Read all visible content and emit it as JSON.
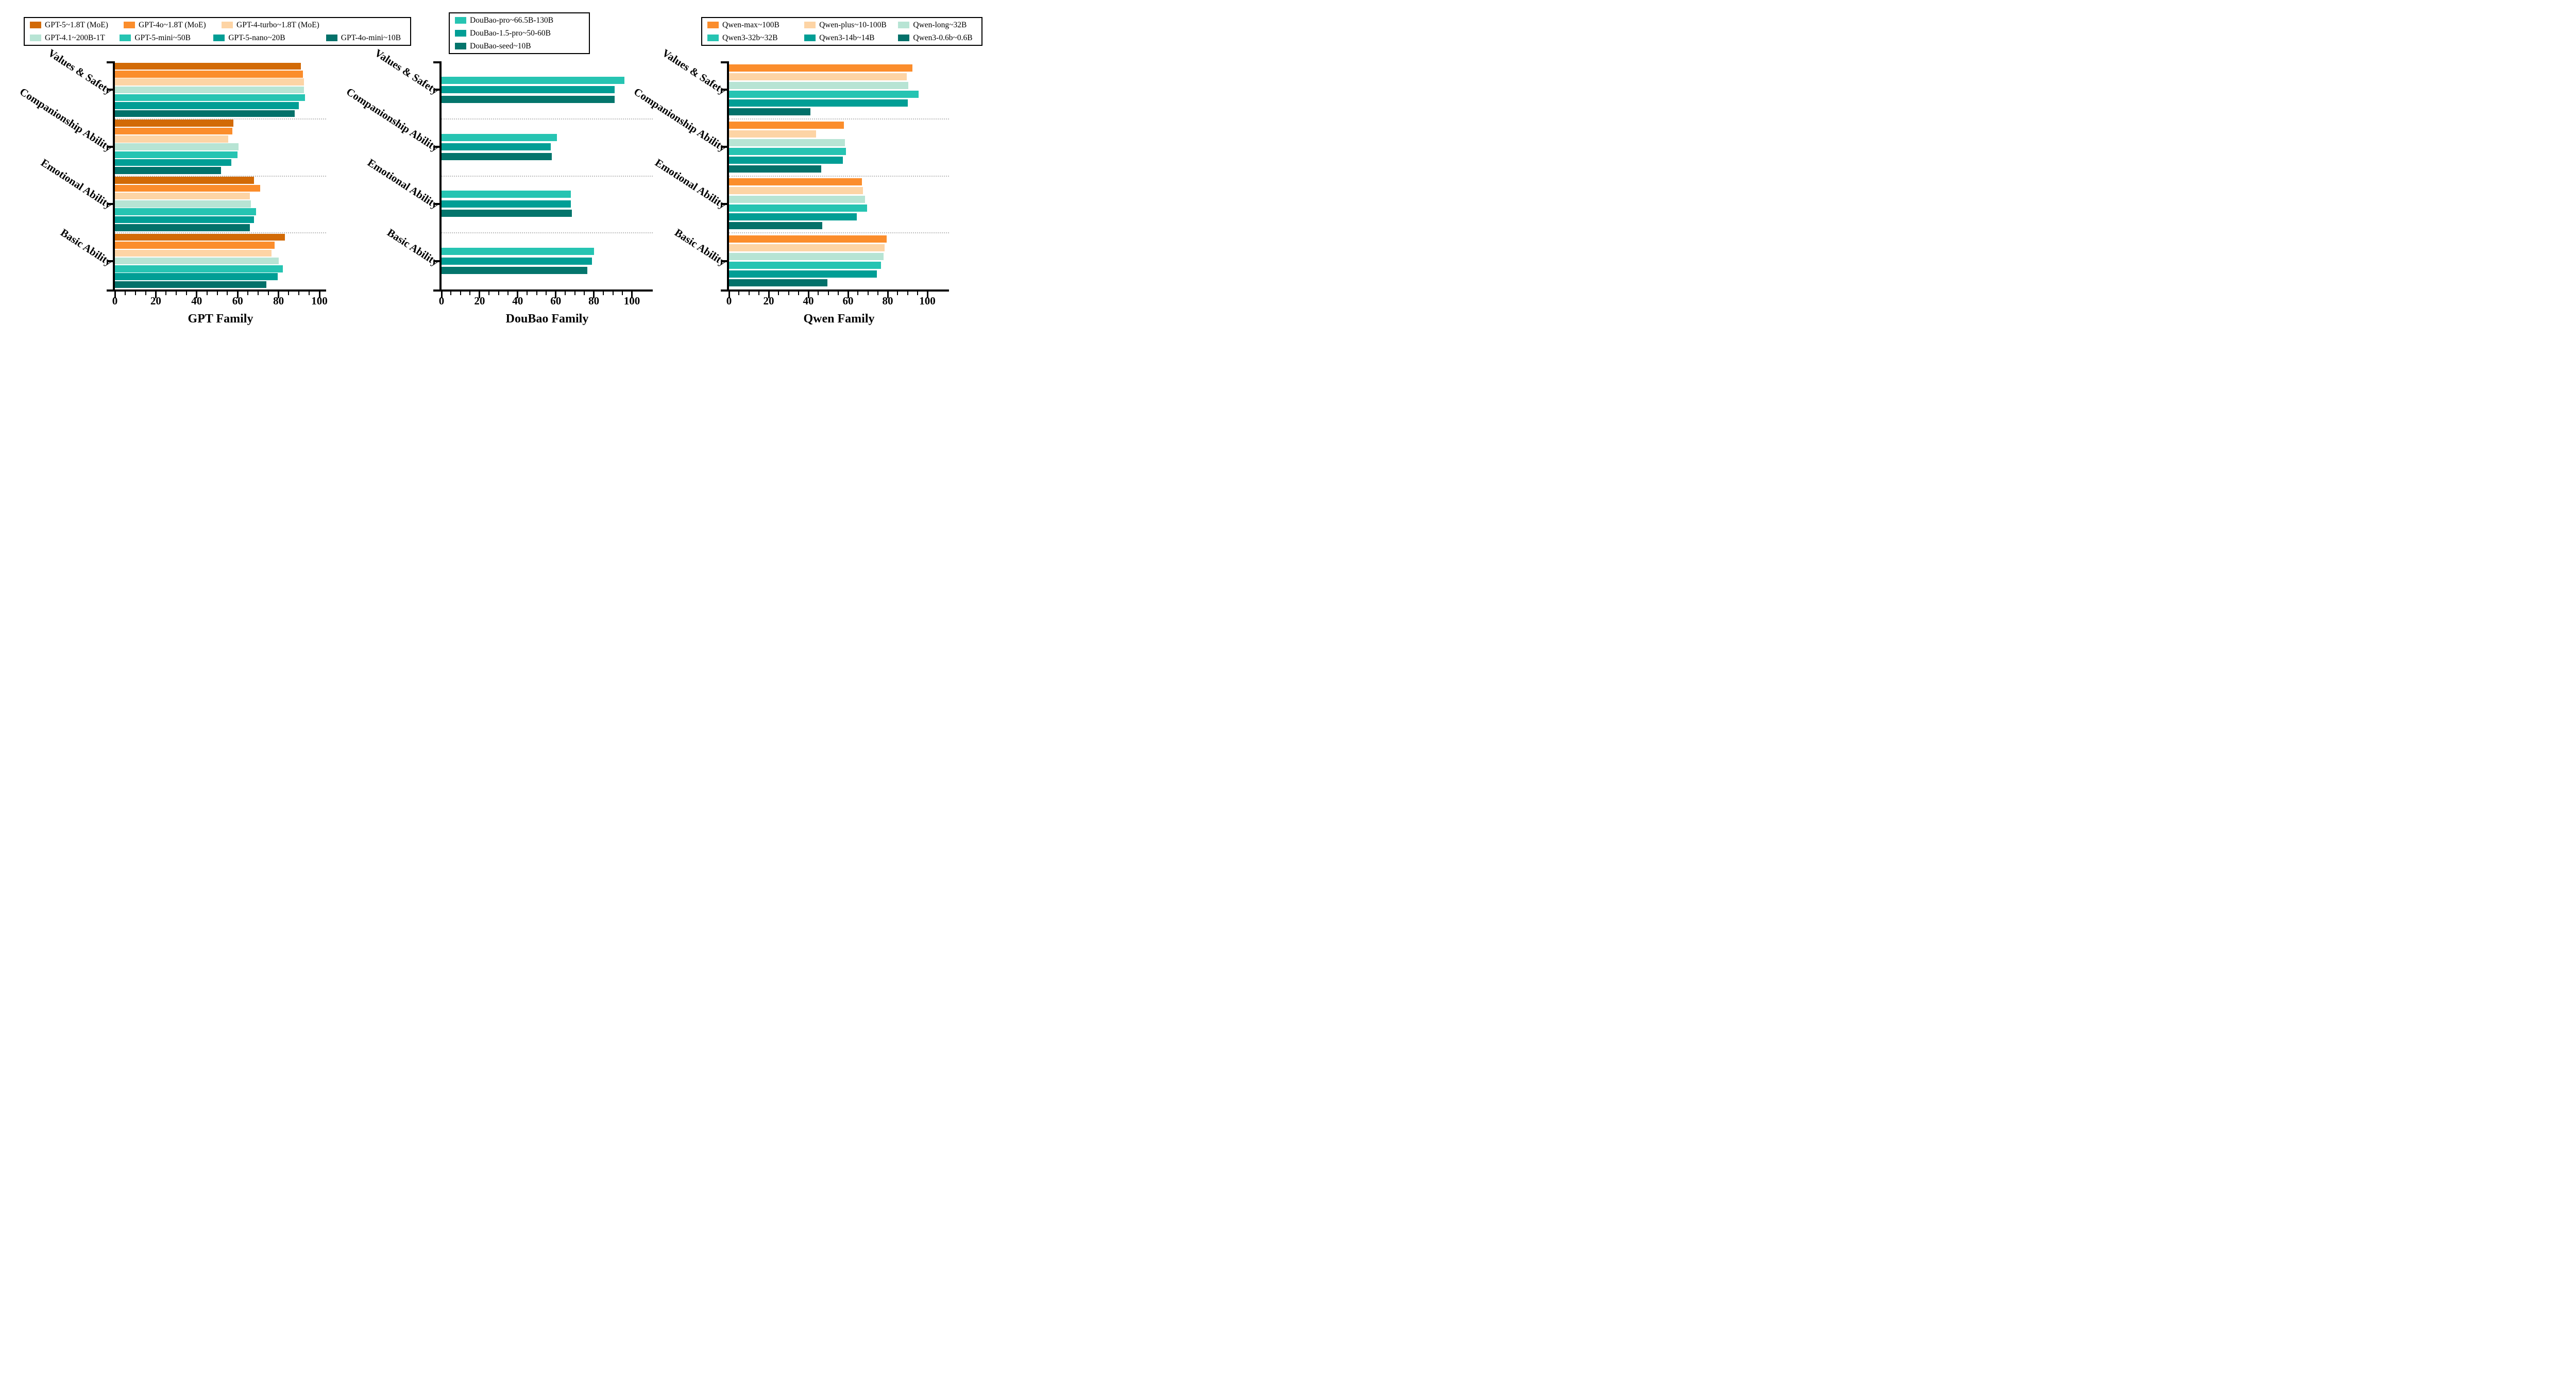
{
  "figure": {
    "background": "#ffffff"
  },
  "categories_top_to_bottom": [
    "Values & Safety",
    "Companionship Ability",
    "Emotional Ability",
    "Basic Ability"
  ],
  "chart_data": [
    {
      "type": "bar",
      "orientation": "horizontal",
      "title": "GPT Family",
      "categories": [
        "Values & Safety",
        "Companionship Ability",
        "Emotional Ability",
        "Basic Ability"
      ],
      "xlabel": "GPT Family",
      "xticks": [
        0,
        20,
        40,
        60,
        80,
        100
      ],
      "xlim": [
        0,
        103
      ],
      "grid": "dotted horizontal separators between category groups",
      "legend_position": "top-left",
      "series": [
        {
          "name": "GPT-5~1.8T (MoE)",
          "color": "#d26a06",
          "values": [
            91,
            58,
            68,
            83
          ]
        },
        {
          "name": "GPT-4o~1.8T (MoE)",
          "color": "#fb8d2c",
          "values": [
            92,
            57.5,
            71,
            78
          ]
        },
        {
          "name": "GPT-4-turbo~1.8T (MoE)",
          "color": "#fdd4a5",
          "values": [
            92.5,
            55.5,
            66,
            76.5
          ]
        },
        {
          "name": "GPT-4.1~200B-1T",
          "color": "#b7e4d4",
          "values": [
            92.5,
            60.5,
            66.5,
            80
          ]
        },
        {
          "name": "GPT-5-mini~50B",
          "color": "#26c4b2",
          "values": [
            93,
            60,
            69,
            82
          ]
        },
        {
          "name": "GPT-5-nano~20B",
          "color": "#019e95",
          "values": [
            90,
            57,
            68,
            79.5
          ]
        },
        {
          "name": "GPT-4o-mini~10B",
          "color": "#03716a",
          "values": [
            88,
            52,
            66,
            74
          ]
        }
      ]
    },
    {
      "type": "bar",
      "orientation": "horizontal",
      "title": "DouBao Family",
      "categories": [
        "Values & Safety",
        "Companionship Ability",
        "Emotional Ability",
        "Basic Ability"
      ],
      "xlabel": "DouBao Family",
      "xticks": [
        0,
        20,
        40,
        60,
        80,
        100
      ],
      "xlim": [
        0,
        103
      ],
      "grid": "dotted horizontal separators between category groups",
      "legend_position": "top-center",
      "series": [
        {
          "name": "DouBao-pro~66.5B-130B",
          "color": "#26c4b2",
          "values": [
            96,
            60.5,
            68,
            80
          ]
        },
        {
          "name": "DouBao-1.5-pro~50-60B",
          "color": "#019e95",
          "values": [
            91,
            57.5,
            68,
            79
          ]
        },
        {
          "name": "DouBao-seed~10B",
          "color": "#04756c",
          "values": [
            91,
            58,
            68.5,
            76.5
          ]
        }
      ]
    },
    {
      "type": "bar",
      "orientation": "horizontal",
      "title": "Qwen Family",
      "categories": [
        "Values & Safety",
        "Companionship Ability",
        "Emotional Ability",
        "Basic Ability"
      ],
      "xlabel": "Qwen Family",
      "xticks": [
        0,
        20,
        40,
        60,
        80,
        100
      ],
      "xlim": [
        0,
        103
      ],
      "grid": "dotted horizontal separators between category groups",
      "legend_position": "top-right",
      "series": [
        {
          "name": "Qwen-max~100B",
          "color": "#fb8d2c",
          "values": [
            92.5,
            58,
            67,
            79.5
          ]
        },
        {
          "name": "Qwen-plus~10-100B",
          "color": "#fdd4a5",
          "values": [
            89.5,
            44,
            67.5,
            78.5
          ]
        },
        {
          "name": "Qwen-long~32B",
          "color": "#b7e4d4",
          "values": [
            90.5,
            58.5,
            68.5,
            78
          ]
        },
        {
          "name": "Qwen3-32b~32B",
          "color": "#26c4b2",
          "values": [
            95.5,
            59,
            69.5,
            76.5
          ]
        },
        {
          "name": "Qwen3-14b~14B",
          "color": "#019e95",
          "values": [
            90,
            57.5,
            64.5,
            74.5
          ]
        },
        {
          "name": "Qwen3-0.6b~0.6B",
          "color": "#03716a",
          "values": [
            41,
            46.5,
            47,
            49.5
          ]
        }
      ]
    }
  ]
}
